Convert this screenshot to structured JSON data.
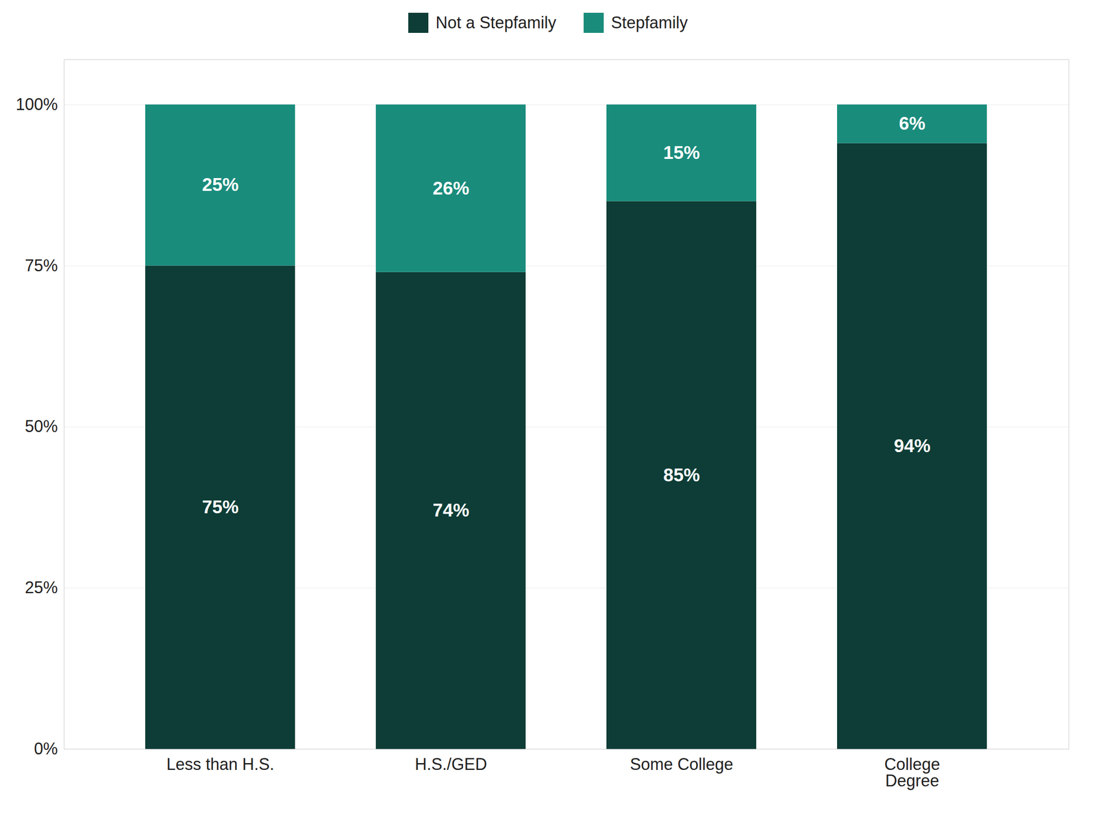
{
  "chart_data": {
    "type": "bar",
    "stacked": true,
    "categories": [
      "Less than H.S.",
      "H.S./GED",
      "Some College",
      "College\nDegree"
    ],
    "series": [
      {
        "name": "Not a Stepfamily",
        "color": "#0d3d36",
        "values": [
          75,
          74,
          85,
          94
        ],
        "value_labels": [
          "75%",
          "74%",
          "85%",
          "94%"
        ]
      },
      {
        "name": "Stepfamily",
        "color": "#1a8c7c",
        "values": [
          25,
          26,
          15,
          6
        ],
        "value_labels": [
          "25%",
          "26%",
          "15%",
          "6%"
        ]
      }
    ],
    "ylim": [
      0,
      107
    ],
    "yticks": [
      {
        "value": 0,
        "label": "0%"
      },
      {
        "value": 25,
        "label": "25%"
      },
      {
        "value": 50,
        "label": "50%"
      },
      {
        "value": 75,
        "label": "75%"
      },
      {
        "value": 100,
        "label": "100%"
      }
    ],
    "grid": true,
    "legend": "top",
    "data_labels": true
  }
}
